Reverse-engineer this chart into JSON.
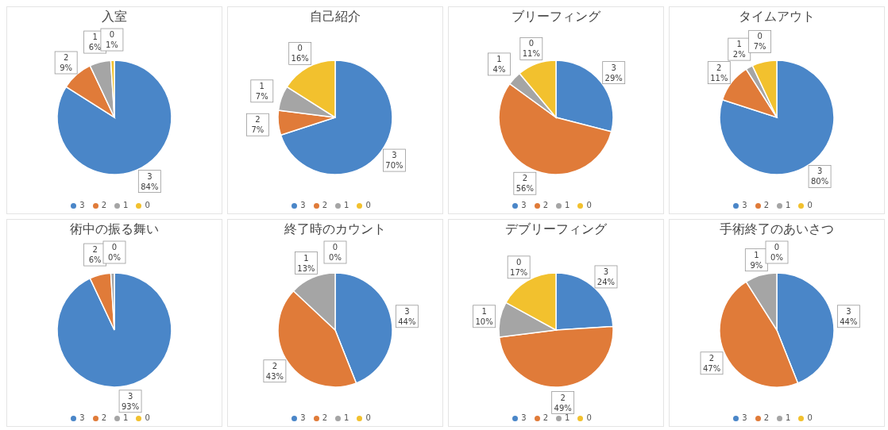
{
  "chart_data": [
    {
      "type": "pie",
      "title": "入室",
      "categories": [
        "3",
        "2",
        "1",
        "0"
      ],
      "values": [
        84,
        9,
        6,
        1
      ],
      "value_labels": [
        "84%",
        "9%",
        "6%",
        "1%"
      ],
      "colors": [
        "#4a86c8",
        "#e07b39",
        "#a5a5a5",
        "#f2c12e"
      ],
      "legend": "bottom"
    },
    {
      "type": "pie",
      "title": "自己紹介",
      "categories": [
        "3",
        "2",
        "1",
        "0"
      ],
      "values": [
        70,
        7,
        7,
        16
      ],
      "value_labels": [
        "70%",
        "7%",
        "7%",
        "16%"
      ],
      "colors": [
        "#4a86c8",
        "#e07b39",
        "#a5a5a5",
        "#f2c12e"
      ],
      "legend": "bottom"
    },
    {
      "type": "pie",
      "title": "ブリーフィング",
      "categories": [
        "3",
        "2",
        "1",
        "0"
      ],
      "values": [
        29,
        56,
        4,
        11
      ],
      "value_labels": [
        "29%",
        "56%",
        "4%",
        "11%"
      ],
      "colors": [
        "#4a86c8",
        "#e07b39",
        "#a5a5a5",
        "#f2c12e"
      ],
      "legend": "bottom"
    },
    {
      "type": "pie",
      "title": "タイムアウト",
      "categories": [
        "3",
        "2",
        "1",
        "0"
      ],
      "values": [
        80,
        11,
        2,
        7
      ],
      "value_labels": [
        "80%",
        "11%",
        "2%",
        "7%"
      ],
      "colors": [
        "#4a86c8",
        "#e07b39",
        "#a5a5a5",
        "#f2c12e"
      ],
      "legend": "bottom"
    },
    {
      "type": "pie",
      "title": "術中の振る舞い",
      "categories": [
        "3",
        "2",
        "1",
        "0"
      ],
      "values": [
        93,
        6,
        1,
        0
      ],
      "value_labels": [
        "93%",
        "6%",
        null,
        "0%"
      ],
      "colors": [
        "#4a86c8",
        "#e07b39",
        "#a5a5a5",
        "#f2c12e"
      ],
      "legend": "bottom"
    },
    {
      "type": "pie",
      "title": "終了時のカウント",
      "categories": [
        "3",
        "2",
        "1",
        "0"
      ],
      "values": [
        44,
        43,
        13,
        0
      ],
      "value_labels": [
        "44%",
        "43%",
        "13%",
        "0%"
      ],
      "colors": [
        "#4a86c8",
        "#e07b39",
        "#a5a5a5",
        "#f2c12e"
      ],
      "legend": "bottom"
    },
    {
      "type": "pie",
      "title": "デブリーフィング",
      "categories": [
        "3",
        "2",
        "1",
        "0"
      ],
      "values": [
        24,
        49,
        10,
        17
      ],
      "value_labels": [
        "24%",
        "49%",
        "10%",
        "17%"
      ],
      "colors": [
        "#4a86c8",
        "#e07b39",
        "#a5a5a5",
        "#f2c12e"
      ],
      "legend": "bottom"
    },
    {
      "type": "pie",
      "title": "手術終了のあいさつ",
      "categories": [
        "3",
        "2",
        "1",
        "0"
      ],
      "values": [
        44,
        47,
        9,
        0
      ],
      "value_labels": [
        "44%",
        "47%",
        "9%",
        "0%"
      ],
      "colors": [
        "#4a86c8",
        "#e07b39",
        "#a5a5a5",
        "#f2c12e"
      ],
      "legend": "bottom"
    }
  ]
}
